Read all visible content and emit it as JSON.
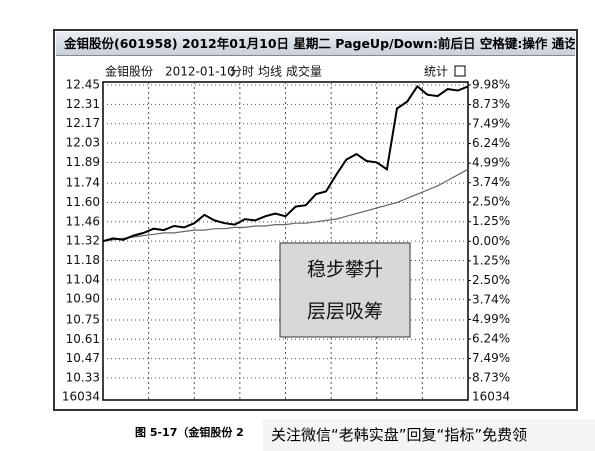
{
  "window": {
    "title": "金钼股份(601958) 2012年01月10日 星期二 PageUp/Down:前后日 空格键:操作 通讫"
  },
  "chart_data": {
    "type": "line",
    "stock_name": "金钼股份",
    "date": "2012-01-10",
    "volume_label": "成交量",
    "stats_label": "统计",
    "series": [
      {
        "name": "分时",
        "color": "#000000",
        "values": [
          11.32,
          11.34,
          11.33,
          11.36,
          11.38,
          11.41,
          11.4,
          11.43,
          11.42,
          11.45,
          11.51,
          11.47,
          11.45,
          11.44,
          11.48,
          11.47,
          11.5,
          11.52,
          11.5,
          11.57,
          11.58,
          11.66,
          11.68,
          11.8,
          11.91,
          11.95,
          11.9,
          11.89,
          11.84,
          12.28,
          12.33,
          12.44,
          12.38,
          12.37,
          12.42,
          12.41,
          12.44
        ]
      },
      {
        "name": "均线",
        "color": "#666666",
        "values": [
          11.32,
          11.33,
          11.34,
          11.35,
          11.36,
          11.37,
          11.38,
          11.38,
          11.39,
          11.4,
          11.4,
          11.41,
          11.41,
          11.42,
          11.42,
          11.43,
          11.43,
          11.44,
          11.44,
          11.45,
          11.45,
          11.46,
          11.47,
          11.48,
          11.5,
          11.52,
          11.54,
          11.56,
          11.58,
          11.6,
          11.63,
          11.66,
          11.69,
          11.72,
          11.76,
          11.8,
          11.84
        ]
      }
    ],
    "ylim": [
      10.33,
      12.45
    ],
    "yticks": [
      12.45,
      12.31,
      12.17,
      12.03,
      11.89,
      11.74,
      {
        "value": 11.6,
        "label": "11.60"
      },
      11.46,
      11.32,
      11.18,
      11.04,
      {
        "value": 10.9,
        "label": "10.90"
      },
      10.75,
      10.61,
      10.47,
      10.33
    ],
    "y2lim": [
      -8.73,
      9.98
    ],
    "y2ticks": [
      {
        "value": 9.98,
        "label": "9.98%"
      },
      {
        "value": 8.73,
        "label": "8.73%"
      },
      {
        "value": 7.49,
        "label": "7.49%"
      },
      {
        "value": 6.24,
        "label": "6.24%"
      },
      {
        "value": 4.99,
        "label": "4.99%"
      },
      {
        "value": 3.74,
        "label": "3.74%"
      },
      {
        "value": 2.5,
        "label": "2.50%"
      },
      {
        "value": 1.25,
        "label": "1.25%"
      },
      {
        "value": 0,
        "label": "0.00%"
      },
      {
        "value": -1.25,
        "label": "1.25%"
      },
      {
        "value": -2.5,
        "label": "2.50%"
      },
      {
        "value": -3.74,
        "label": "3.74%"
      },
      {
        "value": -4.99,
        "label": "4.99%"
      },
      {
        "value": -6.24,
        "label": "6.24%"
      },
      {
        "value": -7.49,
        "label": "7.49%"
      },
      {
        "value": -8.73,
        "label": "8.73%"
      }
    ],
    "volume_max": 16034,
    "grid": true,
    "annotation": [
      "稳步攀升",
      "层层吸筹"
    ]
  },
  "caption": "图 5-17（金钼股份 2",
  "watermark": "关注微信“老韩实盘”回复“指标”免费领"
}
